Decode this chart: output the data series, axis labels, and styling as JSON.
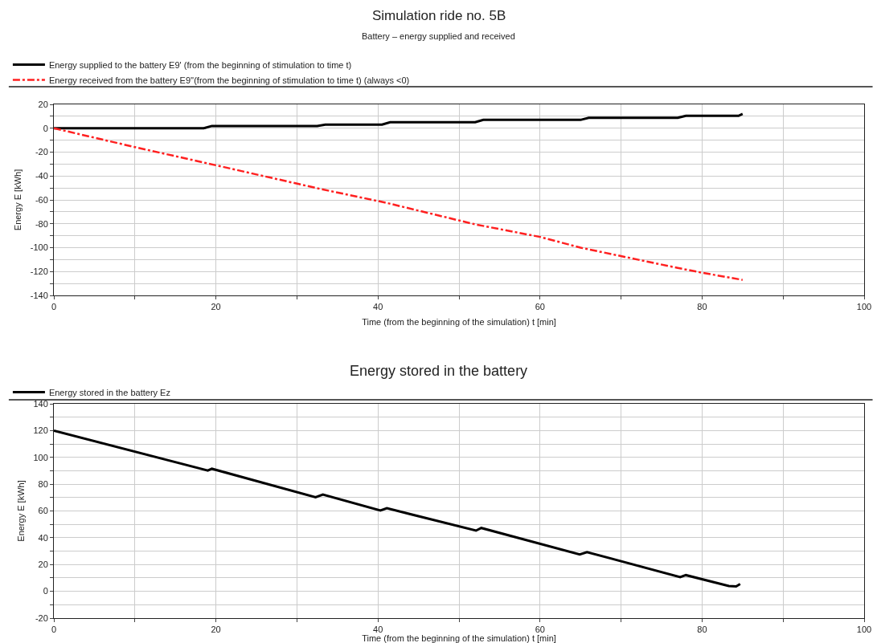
{
  "chart_data": [
    {
      "type": "line",
      "title": "Simulation ride no. 5B",
      "subtitle": "Battery – energy supplied and received",
      "xlabel": "Time (from the beginning of the simulation) t [min]",
      "ylabel": "Energy E [kWh]",
      "series": [
        {
          "name": "Energy supplied to the battery E9' (from the beginning of stimulation to time t)",
          "color": "#000000",
          "line_style": "solid",
          "x": [
            0,
            18.5,
            19.5,
            32.5,
            33.5,
            40.5,
            41.5,
            52,
            53,
            65,
            66,
            77,
            78,
            84.5,
            85
          ],
          "values": [
            0,
            0,
            1.9,
            1.9,
            3,
            3,
            5,
            5,
            7,
            7,
            8.7,
            8.7,
            10.4,
            10.4,
            12
          ]
        },
        {
          "name": "Energy received from the battery E9''(from the beginning of stimulation to time t) (always <0)",
          "color": "#ff2020",
          "line_style": "dashed",
          "x": [
            0,
            10,
            20,
            33,
            41,
            52,
            60,
            65,
            77,
            80,
            85
          ],
          "values": [
            0,
            -15.8,
            -31,
            -51,
            -62.4,
            -80.5,
            -91,
            -100,
            -117,
            -121,
            -127
          ]
        }
      ],
      "xlim": [
        0,
        100
      ],
      "xticks": [
        0,
        {
          "value": 10,
          "label": null
        },
        20,
        {
          "value": 30,
          "label": null
        },
        40,
        {
          "value": 50,
          "label": null
        },
        60,
        {
          "value": 70,
          "label": null
        },
        80,
        {
          "value": 90,
          "label": null
        },
        100
      ],
      "ylim": [
        -140,
        20
      ],
      "yticks": [
        -140,
        {
          "value": -130,
          "label": null
        },
        -120,
        {
          "value": -110,
          "label": null
        },
        -100,
        {
          "value": -90,
          "label": null
        },
        -80,
        {
          "value": -70,
          "label": null
        },
        -60,
        {
          "value": -50,
          "label": null
        },
        -40,
        {
          "value": -30,
          "label": null
        },
        -20,
        {
          "value": -10,
          "label": null
        },
        0,
        {
          "value": 10,
          "label": null
        },
        20
      ],
      "grid": true,
      "legend": "top left",
      "marker": "none"
    },
    {
      "type": "line",
      "title": "Energy stored in the battery",
      "xlabel": "Time (from the beginning of the simulation) t [min]",
      "ylabel": "Energy E [kWh]",
      "series": [
        {
          "name": "Energy stored in the battery Ez",
          "color": "#000000",
          "line_style": "solid",
          "x": [
            0,
            19,
            19.5,
            32.3,
            33.2,
            40.3,
            41.1,
            52.1,
            52.75,
            64.9,
            65.8,
            77.3,
            78,
            83.3,
            84.2,
            84.7
          ],
          "values": [
            120,
            90.2,
            91.5,
            70.2,
            72.2,
            60.3,
            62,
            45.3,
            47.3,
            27.5,
            29.3,
            10.6,
            12.1,
            4,
            3.7,
            5.5
          ]
        }
      ],
      "xlim": [
        0,
        100
      ],
      "xticks": [
        0,
        {
          "value": 10,
          "label": null
        },
        20,
        {
          "value": 30,
          "label": null
        },
        40,
        {
          "value": 50,
          "label": null
        },
        60,
        {
          "value": 70,
          "label": null
        },
        80,
        {
          "value": 90,
          "label": null
        },
        100
      ],
      "ylim": [
        -20,
        140
      ],
      "yticks": [
        -20,
        {
          "value": -10,
          "label": null
        },
        0,
        {
          "value": 10,
          "label": null
        },
        20,
        {
          "value": 30,
          "label": null
        },
        40,
        {
          "value": 50,
          "label": null
        },
        60,
        {
          "value": 70,
          "label": null
        },
        80,
        {
          "value": 90,
          "label": null
        },
        100,
        {
          "value": 110,
          "label": null
        },
        120,
        {
          "value": 130,
          "label": null
        },
        140
      ],
      "grid": true,
      "legend": "top left",
      "marker": "none"
    }
  ]
}
